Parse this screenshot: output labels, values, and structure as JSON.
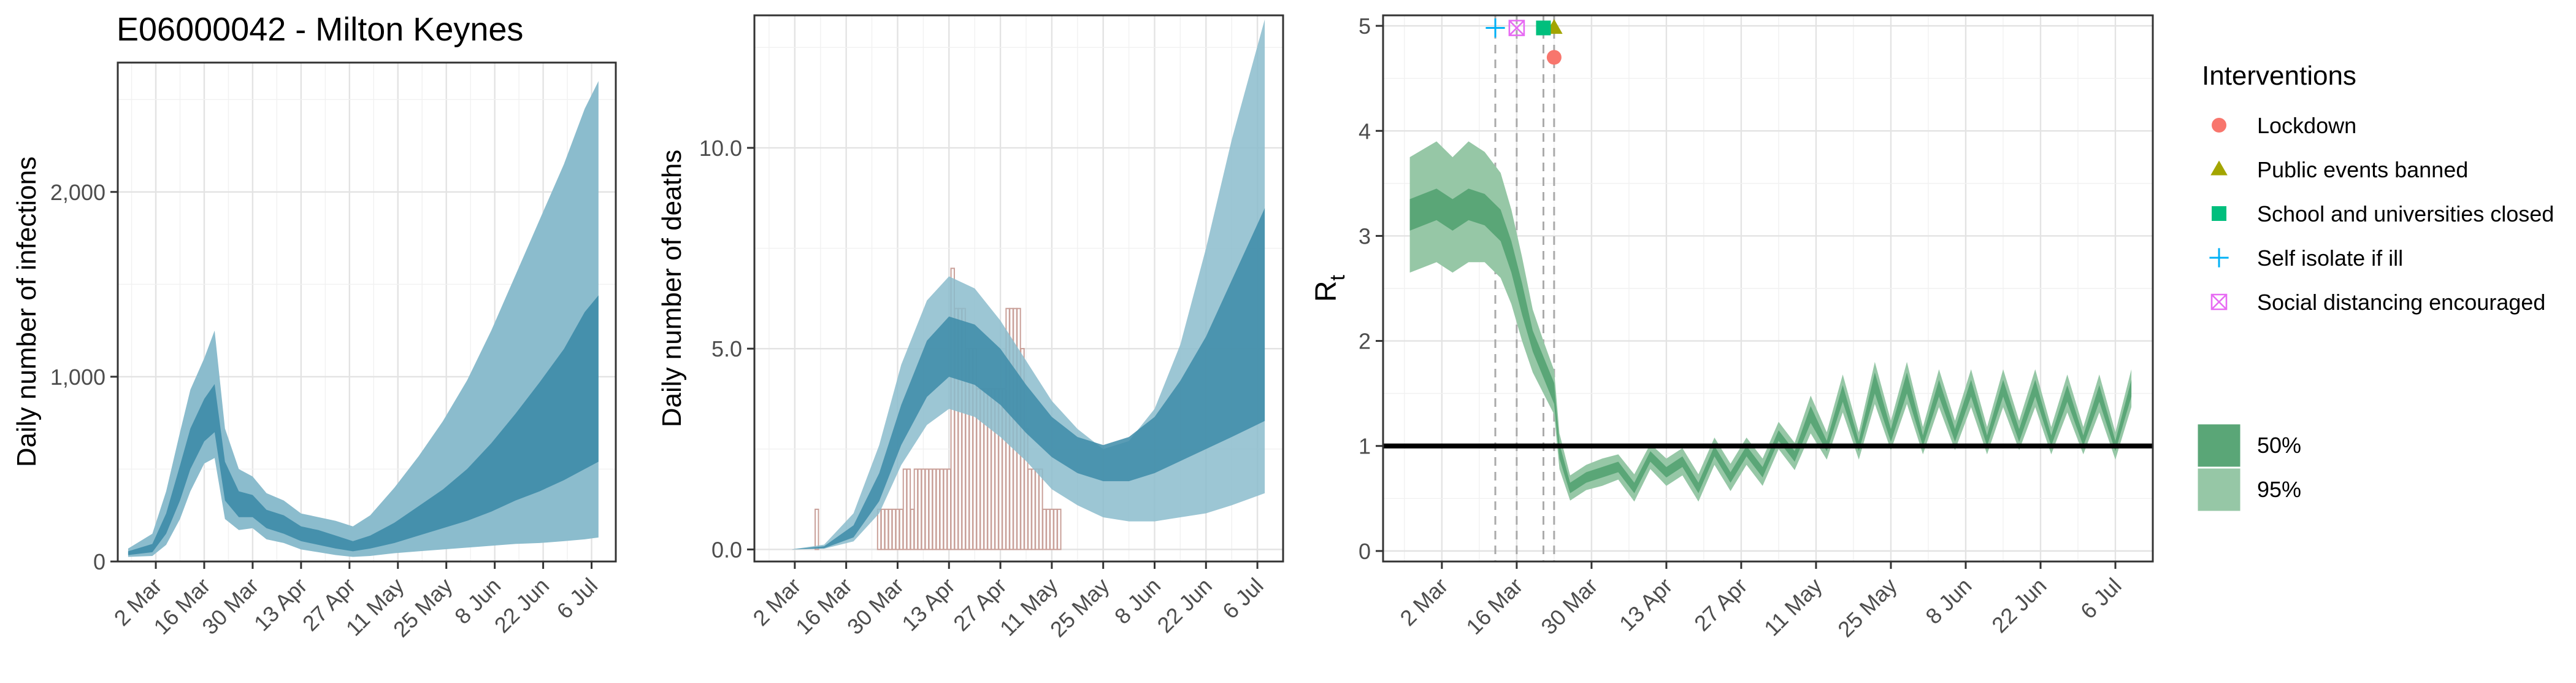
{
  "title": "E06000042 - Milton Keynes",
  "colors": {
    "band_blue_95": "#8bbccd",
    "band_blue_50": "#3d8ba8",
    "band_green_95": "#96c7a6",
    "band_green_50": "#5aa677",
    "deaths_bar": "#c9a099",
    "lockdown": "#f8766d",
    "public_events": "#a3a500",
    "schools": "#00bf7d",
    "self_isolate": "#00b0f6",
    "social_distancing": "#e76bf3"
  },
  "chart_data": [
    {
      "type": "area",
      "ylabel": "Daily number of infections",
      "xlabel": "",
      "x_tick_labels": [
        "2 Mar",
        "16 Mar",
        "30 Mar",
        "13 Apr",
        "27 Apr",
        "11 May",
        "25 May",
        "8 Jun",
        "22 Jun",
        "6 Jul"
      ],
      "y_ticks": [
        0,
        1000,
        2000
      ],
      "y_tick_labels": [
        "0",
        "1,000",
        "2,000"
      ],
      "xlim": [
        "2020-02-20",
        "2020-07-13"
      ],
      "ylim": [
        0,
        2700
      ],
      "series": [
        {
          "x": [
            "2020-02-23",
            "2020-03-01",
            "2020-03-05",
            "2020-03-09",
            "2020-03-12",
            "2020-03-16",
            "2020-03-19",
            "2020-03-22",
            "2020-03-26",
            "2020-03-30",
            "2020-04-03",
            "2020-04-08",
            "2020-04-13",
            "2020-04-18",
            "2020-04-23",
            "2020-04-28",
            "2020-05-03",
            "2020-05-10",
            "2020-05-17",
            "2020-05-24",
            "2020-05-31",
            "2020-06-07",
            "2020-06-14",
            "2020-06-21",
            "2020-06-28",
            "2020-07-04",
            "2020-07-08"
          ],
          "median": [
            45,
            70,
            200,
            420,
            600,
            760,
            820,
            430,
            310,
            300,
            230,
            200,
            150,
            130,
            100,
            80,
            100,
            150,
            210,
            270,
            340,
            430,
            540,
            650,
            780,
            940,
            1000
          ],
          "lower50": [
            35,
            50,
            150,
            330,
            500,
            650,
            700,
            330,
            240,
            240,
            180,
            150,
            110,
            90,
            70,
            55,
            70,
            100,
            140,
            180,
            220,
            270,
            330,
            380,
            440,
            500,
            540
          ],
          "upper50": [
            55,
            95,
            260,
            520,
            720,
            880,
            960,
            540,
            380,
            360,
            280,
            250,
            190,
            170,
            140,
            110,
            140,
            210,
            300,
            390,
            500,
            640,
            800,
            970,
            1150,
            1350,
            1440
          ],
          "lower95": [
            25,
            30,
            90,
            230,
            380,
            530,
            560,
            230,
            170,
            180,
            120,
            100,
            65,
            50,
            35,
            25,
            30,
            45,
            55,
            65,
            75,
            85,
            95,
            100,
            110,
            120,
            130
          ],
          "upper95": [
            70,
            150,
            380,
            700,
            930,
            1100,
            1250,
            720,
            500,
            460,
            370,
            330,
            260,
            240,
            220,
            190,
            250,
            400,
            570,
            760,
            980,
            1250,
            1550,
            1850,
            2150,
            2450,
            2600
          ]
        }
      ]
    },
    {
      "type": "bar",
      "ylabel": "Daily number of deaths",
      "xlabel": "",
      "x_tick_labels": [
        "2 Mar",
        "16 Mar",
        "30 Mar",
        "13 Apr",
        "27 Apr",
        "11 May",
        "25 May",
        "8 Jun",
        "22 Jun",
        "6 Jul"
      ],
      "y_ticks": [
        0,
        5,
        10
      ],
      "y_tick_labels": [
        "0.0",
        "5.0",
        "10.0"
      ],
      "xlim": [
        "2020-02-20",
        "2020-07-13"
      ],
      "ylim": [
        -0.3,
        13.3
      ],
      "bars": {
        "start": "2020-03-08",
        "values": [
          1,
          0,
          0,
          0,
          0,
          0,
          0,
          0,
          0,
          0,
          0,
          0,
          0,
          0,
          0,
          0,
          0,
          1,
          1,
          1,
          1,
          1,
          1,
          1,
          2,
          2,
          1,
          2,
          2,
          2,
          2,
          2,
          2,
          2,
          2,
          2,
          2,
          7,
          6,
          6,
          6,
          5,
          5,
          5,
          4,
          4,
          4,
          4,
          4,
          4,
          4,
          4,
          6,
          6,
          6,
          6,
          5,
          3,
          2,
          2,
          2,
          2,
          1,
          1,
          1,
          1,
          1
        ]
      },
      "series": [
        {
          "x": [
            "2020-03-01",
            "2020-03-10",
            "2020-03-18",
            "2020-03-25",
            "2020-03-31",
            "2020-04-07",
            "2020-04-13",
            "2020-04-20",
            "2020-04-27",
            "2020-05-04",
            "2020-05-11",
            "2020-05-18",
            "2020-05-25",
            "2020-06-01",
            "2020-06-08",
            "2020-06-15",
            "2020-06-22",
            "2020-06-29",
            "2020-07-08"
          ],
          "median": [
            0.0,
            0.05,
            0.4,
            1.5,
            3.1,
            4.5,
            5.1,
            4.9,
            4.3,
            3.5,
            2.8,
            2.3,
            2.0,
            2.1,
            2.4,
            3.0,
            3.8,
            4.8,
            6.1
          ],
          "lower50": [
            0.0,
            0.03,
            0.3,
            1.2,
            2.6,
            3.8,
            4.3,
            4.1,
            3.6,
            2.9,
            2.3,
            1.9,
            1.7,
            1.7,
            1.9,
            2.2,
            2.5,
            2.8,
            3.2
          ],
          "upper50": [
            0.0,
            0.08,
            0.6,
            1.9,
            3.6,
            5.2,
            5.8,
            5.6,
            5.0,
            4.1,
            3.3,
            2.8,
            2.6,
            2.8,
            3.3,
            4.2,
            5.3,
            6.7,
            8.5
          ],
          "lower95": [
            0.0,
            0.02,
            0.2,
            0.9,
            2.1,
            3.1,
            3.5,
            3.3,
            2.8,
            2.2,
            1.5,
            1.1,
            0.8,
            0.7,
            0.7,
            0.8,
            0.9,
            1.1,
            1.4
          ],
          "upper95": [
            0.0,
            0.12,
            0.9,
            2.6,
            4.6,
            6.2,
            6.8,
            6.5,
            5.7,
            4.7,
            3.7,
            3.0,
            2.5,
            2.7,
            3.5,
            5.1,
            7.5,
            10.2,
            13.2
          ]
        }
      ]
    },
    {
      "type": "line",
      "ylabel": "R",
      "ylabel_subscript": "t",
      "xlabel": "",
      "x_tick_labels": [
        "2 Mar",
        "16 Mar",
        "30 Mar",
        "13 Apr",
        "27 Apr",
        "11 May",
        "25 May",
        "8 Jun",
        "22 Jun",
        "6 Jul"
      ],
      "y_ticks": [
        0,
        1,
        2,
        3,
        4,
        5
      ],
      "y_tick_labels": [
        "0",
        "1",
        "2",
        "3",
        "4",
        "5"
      ],
      "xlim": [
        "2020-02-20",
        "2020-07-13"
      ],
      "ylim": [
        -0.1,
        5.1
      ],
      "reference_line": 1,
      "series": [
        {
          "x": [
            "2020-02-25",
            "2020-03-01",
            "2020-03-04",
            "2020-03-07",
            "2020-03-10",
            "2020-03-13",
            "2020-03-15",
            "2020-03-17",
            "2020-03-19",
            "2020-03-21",
            "2020-03-23",
            "2020-03-24",
            "2020-03-26",
            "2020-03-29",
            "2020-04-01",
            "2020-04-04",
            "2020-04-07",
            "2020-04-10",
            "2020-04-13",
            "2020-04-16",
            "2020-04-19",
            "2020-04-22",
            "2020-04-25",
            "2020-04-28",
            "2020-05-01",
            "2020-05-04",
            "2020-05-07",
            "2020-05-10",
            "2020-05-13",
            "2020-05-16",
            "2020-05-19",
            "2020-05-22",
            "2020-05-25",
            "2020-05-28",
            "2020-05-31",
            "2020-06-03",
            "2020-06-06",
            "2020-06-09",
            "2020-06-12",
            "2020-06-15",
            "2020-06-18",
            "2020-06-21",
            "2020-06-24",
            "2020-06-27",
            "2020-06-30",
            "2020-07-03",
            "2020-07-06",
            "2020-07-09"
          ],
          "median": [
            3.2,
            3.3,
            3.2,
            3.3,
            3.25,
            3.1,
            2.8,
            2.4,
            2.0,
            1.75,
            1.5,
            0.95,
            0.6,
            0.7,
            0.75,
            0.8,
            0.6,
            0.9,
            0.75,
            0.85,
            0.6,
            0.95,
            0.7,
            0.95,
            0.75,
            1.1,
            0.9,
            1.3,
            1.0,
            1.5,
            1.0,
            1.6,
            1.1,
            1.6,
            1.05,
            1.55,
            1.1,
            1.55,
            1.05,
            1.55,
            1.1,
            1.55,
            1.05,
            1.5,
            1.05,
            1.5,
            1.0,
            1.55
          ],
          "lower50": [
            3.05,
            3.15,
            3.05,
            3.15,
            3.1,
            2.95,
            2.65,
            2.25,
            1.9,
            1.65,
            1.4,
            0.88,
            0.55,
            0.65,
            0.7,
            0.75,
            0.55,
            0.85,
            0.7,
            0.8,
            0.55,
            0.9,
            0.65,
            0.9,
            0.7,
            1.05,
            0.85,
            1.22,
            0.95,
            1.42,
            0.95,
            1.5,
            1.04,
            1.5,
            1.0,
            1.47,
            1.04,
            1.47,
            1.0,
            1.47,
            1.04,
            1.47,
            1.0,
            1.42,
            1.0,
            1.42,
            0.95,
            1.47
          ],
          "upper50": [
            3.35,
            3.45,
            3.35,
            3.45,
            3.4,
            3.25,
            2.95,
            2.55,
            2.1,
            1.85,
            1.6,
            1.02,
            0.65,
            0.75,
            0.8,
            0.85,
            0.65,
            0.95,
            0.8,
            0.9,
            0.65,
            1.0,
            0.75,
            1.0,
            0.8,
            1.15,
            0.95,
            1.38,
            1.05,
            1.58,
            1.05,
            1.7,
            1.16,
            1.7,
            1.1,
            1.63,
            1.16,
            1.63,
            1.1,
            1.63,
            1.16,
            1.63,
            1.1,
            1.58,
            1.1,
            1.58,
            1.05,
            1.63
          ],
          "lower95": [
            2.65,
            2.75,
            2.65,
            2.75,
            2.75,
            2.6,
            2.35,
            2.0,
            1.7,
            1.5,
            1.3,
            0.78,
            0.48,
            0.58,
            0.62,
            0.68,
            0.47,
            0.78,
            0.62,
            0.72,
            0.47,
            0.82,
            0.57,
            0.82,
            0.62,
            0.97,
            0.77,
            1.12,
            0.87,
            1.32,
            0.87,
            1.4,
            0.96,
            1.4,
            0.92,
            1.37,
            0.96,
            1.37,
            0.92,
            1.37,
            0.96,
            1.37,
            0.92,
            1.32,
            0.92,
            1.32,
            0.87,
            1.37
          ],
          "upper95": [
            3.75,
            3.9,
            3.75,
            3.9,
            3.8,
            3.6,
            3.25,
            2.8,
            2.3,
            2.0,
            1.72,
            1.12,
            0.72,
            0.82,
            0.88,
            0.92,
            0.73,
            1.02,
            0.88,
            0.98,
            0.73,
            1.08,
            0.83,
            1.08,
            0.88,
            1.23,
            1.03,
            1.48,
            1.13,
            1.68,
            1.13,
            1.8,
            1.24,
            1.8,
            1.18,
            1.73,
            1.24,
            1.73,
            1.18,
            1.73,
            1.24,
            1.73,
            1.18,
            1.68,
            1.18,
            1.68,
            1.13,
            1.73
          ]
        }
      ],
      "interventions": [
        {
          "name": "Lockdown",
          "date": "2020-03-23",
          "shape": "circle",
          "color": "#f8766d",
          "y": 4.7
        },
        {
          "name": "Public events banned",
          "date": "2020-03-23",
          "shape": "triangle",
          "color": "#a3a500",
          "y": 4.98
        },
        {
          "name": "School and universities closed",
          "date": "2020-03-21",
          "shape": "square",
          "color": "#00bf7d",
          "y": 4.98
        },
        {
          "name": "Self isolate if ill",
          "date": "2020-03-12",
          "shape": "plus",
          "color": "#00b0f6",
          "y": 4.98
        },
        {
          "name": "Social distancing encouraged",
          "date": "2020-03-16",
          "shape": "boxcross",
          "color": "#e76bf3",
          "y": 4.98
        }
      ]
    }
  ],
  "legend_interventions": {
    "title": "Interventions",
    "items": [
      "Lockdown",
      "Public events banned",
      "School and universities closed",
      "Self isolate if ill",
      "Social distancing encouraged"
    ]
  },
  "legend_ci": {
    "items": [
      "50%",
      "95%"
    ]
  }
}
